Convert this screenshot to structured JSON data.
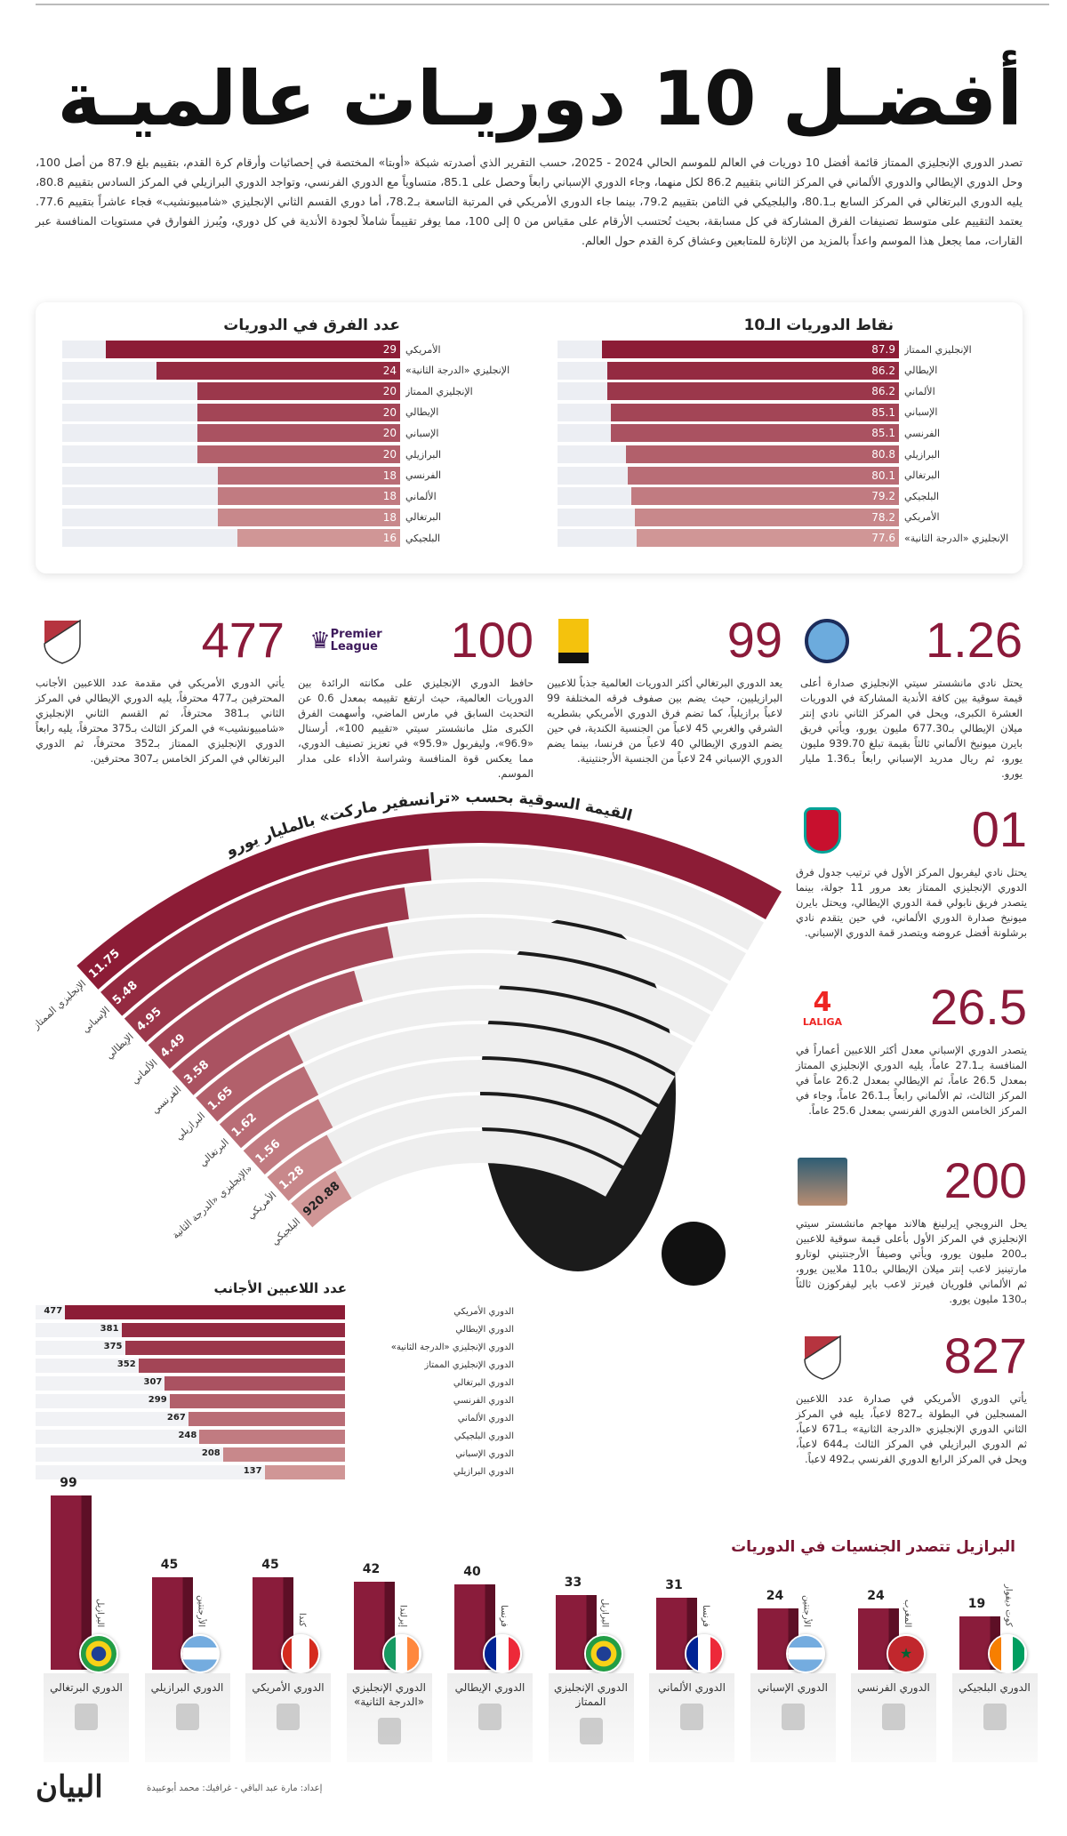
{
  "title": "أفضـل 10 دوريـات عالميـة",
  "intro": "تصدر الدوري الإنجليزي الممتاز قائمة أفضل 10 دوريات في العالم للموسم الحالي 2024 - 2025، حسب التقرير الذي أصدرته شبكة «أوبتا» المختصة في إحصائيات وأرقام كرة القدم، بتقييم بلغ 87.9 من أصل 100، وحل الدوري الإيطالي والدوري الألماني في المركز الثاني بتقييم 86.2 لكل منهما، وجاء الدوري الإسباني رابعاً وحصل على 85.1، متساوياً مع الدوري الفرنسي، وتواجد الدوري البرازيلي في المركز السادس بتقييم 80.8، يليه الدوري البرتغالي في المركز السابع بـ80.1، والبلجيكي في الثامن بتقييم 79.2، بينما جاء الدوري الأمريكي في المرتبة التاسعة بـ78.2، أما دوري القسم الثاني الإنجليزي «شامبيونشيب» فجاء عاشراً بتقييم 77.6. يعتمد التقييم على متوسط تصنيفات الفرق المشاركة في كل مسابقة، بحيث تُحتسب الأرقام على مقياس من 0 إلى 100، مما يوفر تقييماً شاملاً لجودة الأندية في كل دوري، ويُبرز الفوارق في مستويات المنافسة عبر القارات، مما يجعل هذا الموسم واعداً بالمزيد من الإثارة للمتابعين وعشاق كرة القدم حول العالم.",
  "chart_data": [
    {
      "type": "bar",
      "title": "نقاط الدوريات الـ10",
      "categories": [
        "الإنجليزي الممتاز",
        "الإيطالي",
        "الألماني",
        "الإسباني",
        "الفرنسي",
        "البرازيلي",
        "البرتغالي",
        "البلجيكي",
        "الأمريكي",
        "الإنجليزي «الدرجة الثانية»"
      ],
      "values": [
        87.9,
        86.2,
        86.2,
        85.1,
        85.1,
        80.8,
        80.1,
        79.2,
        78.2,
        77.6
      ],
      "orientation": "horizontal"
    },
    {
      "type": "bar",
      "title": "عدد الفرق في الدوريات",
      "categories": [
        "الأمريكي",
        "الإنجليزي «الدرجة الثانية»",
        "الإنجليزي الممتاز",
        "الإيطالي",
        "الإسباني",
        "البرازيلي",
        "الفرنسي",
        "الألماني",
        "البرتغالي",
        "البلجيكي"
      ],
      "values": [
        29,
        24,
        20,
        20,
        20,
        20,
        18,
        18,
        18,
        16
      ],
      "orientation": "horizontal"
    },
    {
      "type": "bar",
      "title": "القيمة السوقية بحسب «ترانسفير ماركت» بالمليار يورو",
      "shape": "radial",
      "categories": [
        "الإنجليزي الممتاز",
        "الإسباني",
        "الإيطالي",
        "الألماني",
        "الفرنسي",
        "البرازيلي",
        "البرتغالي",
        "الإنجليزي «الدرجة الثانية»",
        "الأمريكي",
        "البلجيكي"
      ],
      "values": [
        11.75,
        5.48,
        4.95,
        4.49,
        3.58,
        1.65,
        1.62,
        1.56,
        1.28,
        0.92088
      ],
      "labels": [
        "11.75",
        "5.48",
        "4.95",
        "4.49",
        "3.58",
        "1.65",
        "1.62",
        "1.56",
        "1.28",
        "920.88"
      ]
    },
    {
      "type": "bar",
      "title": "عدد اللاعبين الأجانب",
      "categories": [
        "الدوري الأمريكي",
        "الدوري الإيطالي",
        "الدوري الإنجليزي «الدرجة الثانية»",
        "الدوري الإنجليزي الممتاز",
        "الدوري البرتغالي",
        "الدوري الفرنسي",
        "الدوري الألماني",
        "الدوري البلجيكي",
        "الدوري الإسباني",
        "الدوري البرازيلي"
      ],
      "values": [
        477,
        381,
        375,
        352,
        307,
        299,
        267,
        248,
        208,
        137
      ],
      "orientation": "horizontal"
    },
    {
      "type": "bar",
      "title": "البرازيل تتصدر الجنسيات في الدوريات",
      "categories": [
        "الدوري البرتغالي",
        "الدوري البرازيلي",
        "الدوري الأمريكي",
        "الدوري الإنجليزي «الدرجة الثانية»",
        "الدوري الإيطالي",
        "الدوري الإنجليزي الممتاز",
        "الدوري الألماني",
        "الدوري الإسباني",
        "الدوري الفرنسي",
        "الدوري البلجيكي"
      ],
      "nationalities": [
        "البرازيل",
        "الأرجنتين",
        "كندا",
        "إيرلندا",
        "فرنسا",
        "البرازيل",
        "فرنسا",
        "الأرجنتين",
        "المغرب",
        "كوت ديفوار"
      ],
      "flags": [
        "brazil",
        "argentina",
        "canada",
        "ireland",
        "france",
        "brazil",
        "france",
        "argentina",
        "morocco",
        "ivory-coast"
      ],
      "league_logos": [
        "liga-portugal",
        "brasileirao",
        "mls",
        "efl-championship",
        "serie-a",
        "premier-league",
        "bundesliga",
        "laliga",
        "ligue-1",
        "jupiler-pro-league"
      ],
      "values": [
        99,
        45,
        45,
        42,
        40,
        33,
        31,
        24,
        24,
        19
      ]
    }
  ],
  "stats": [
    {
      "number": "477",
      "logo": "mls",
      "text": "يأتي الدوري الأمريكي في مقدمة عدد اللاعبين الأجانب المحترفين بـ477 محترفاً، يليه الدوري الإيطالي في المركز الثاني بـ381 محترفاً، ثم القسم الثاني الإنجليزي «شامبيونشيب» في المركز الثالث بـ375 محترفاً، يليه رابعاً الدوري الإنجليزي الممتاز بـ352 محترفاً، ثم الدوري البرتغالي في المركز الخامس بـ307 محترفين."
    },
    {
      "number": "100",
      "logo": "premier-league",
      "logo_text": "Premier League",
      "text": "حافظ الدوري الإنجليزي على مكانته الرائدة بين الدوريات العالمية، حيث ارتفع تقييمه بمعدل 0.6 عن التحديث السابق في مارس الماضي، وأسهمت الفرق الكبرى مثل مانشستر سيتي «تقييم 100»، أرسنال «96.9»، وليفربول «95.9» في تعزيز تصنيف الدوري، مما يعكس قوة المنافسة وشراسة الأداء على مدار الموسم."
    },
    {
      "number": "99",
      "logo": "liga-portugal",
      "logo_text": "Liga Portugal Betclic",
      "text": "يعد الدوري البرتغالي أكثر الدوريات العالمية جذباً للاعبين البرازيليين، حيث يضم بين صفوف فرقه المختلفة 99 لاعباً برازيلياً، كما تضم فرق الدوري الأمريكي بشطريه الشرقي والغربي 45 لاعباً من الجنسية الكندية، في حين يضم الدوري الإيطالي 40 لاعباً من فرنسا، بينما يضم الدوري الإسباني 24 لاعباً من الجنسية الأرجنتينية."
    },
    {
      "number": "1.26",
      "logo": "manchester-city",
      "text": "يحتل نادي مانشستر سيتي الإنجليزي صدارة أعلى قيمة سوقية بين كافة الأندية المشاركة في الدوريات العشرة الكبرى، ويحل في المركز الثاني نادي إنتر ميلان الإيطالي بـ677.30 مليون يورو، ويأتي فريق بايرن ميونيخ الألماني ثالثاً بقيمة تبلغ 939.70 مليون يورو، ثم ريال مدريد الإسباني رابعاً بـ1.36 مليار يورو."
    },
    {
      "number": "01",
      "logo": "liverpool",
      "text": "يحتل نادي ليفربول المركز الأول في ترتيب جدول فرق الدوري الإنجليزي الممتاز بعد مرور 11 جولة، بينما يتصدر فريق نابولي قمة الدوري الإيطالي، ويحتل بايرن ميونيخ صدارة الدوري الألماني، في حين يتقدم نادي برشلونة أفضل عروضه ويتصدر قمة الدوري الإسباني."
    },
    {
      "number": "26.5",
      "logo": "laliga",
      "logo_text": "LALIGA",
      "text": "يتصدر الدوري الإسباني معدل أكثر اللاعبين أعماراً في المنافسة بـ27.1 عاماً، يليه الدوري الإنجليزي الممتاز بمعدل 26.5 عاماً، ثم الإيطالي بمعدل 26.2 عاماً في المركز الثالث، ثم الألماني رابعاً بـ26.1 عاماً، وجاء في المركز الخامس الدوري الفرنسي بمعدل 25.6 عاماً."
    },
    {
      "number": "200",
      "logo": "player-photo",
      "text": "يحل النرويجي إيرلينغ هالاند مهاجم مانشستر سيتي الإنجليزي في المركز الأول بأعلى قيمة سوقية للاعبين بـ200 مليون يورو، ويأتي وصيفاً الأرجنتيني لوتارو مارتينيز لاعب إنتر ميلان الإيطالي بـ110 ملايين يورو، ثم الألماني فلوريان فيرتز لاعب باير ليفركوزن ثالثاً بـ130 مليون يورو."
    },
    {
      "number": "827",
      "logo": "mls",
      "text": "يأتي الدوري الأمريكي في صدارة عدد اللاعبين المسجلين في البطولة بـ827 لاعباً، يليه في المركز الثاني الدوري الإنجليزي «الدرجة الثانية» بـ671 لاعباً، ثم الدوري البرازيلي في المركز الثالث بـ644 لاعباً، ويحل في المركز الرابع الدوري الفرنسي بـ492 لاعباً."
    }
  ],
  "footer": {
    "credit": "إعداد: مارة عبد الباقي - غرافيك: محمد أبوعبيدة",
    "brand": "البيان"
  },
  "colors": {
    "accent": "#8b1a3a",
    "bar_dark": "#8c1c36",
    "bar_light": "#d19a9a",
    "track": "#eceef3"
  }
}
